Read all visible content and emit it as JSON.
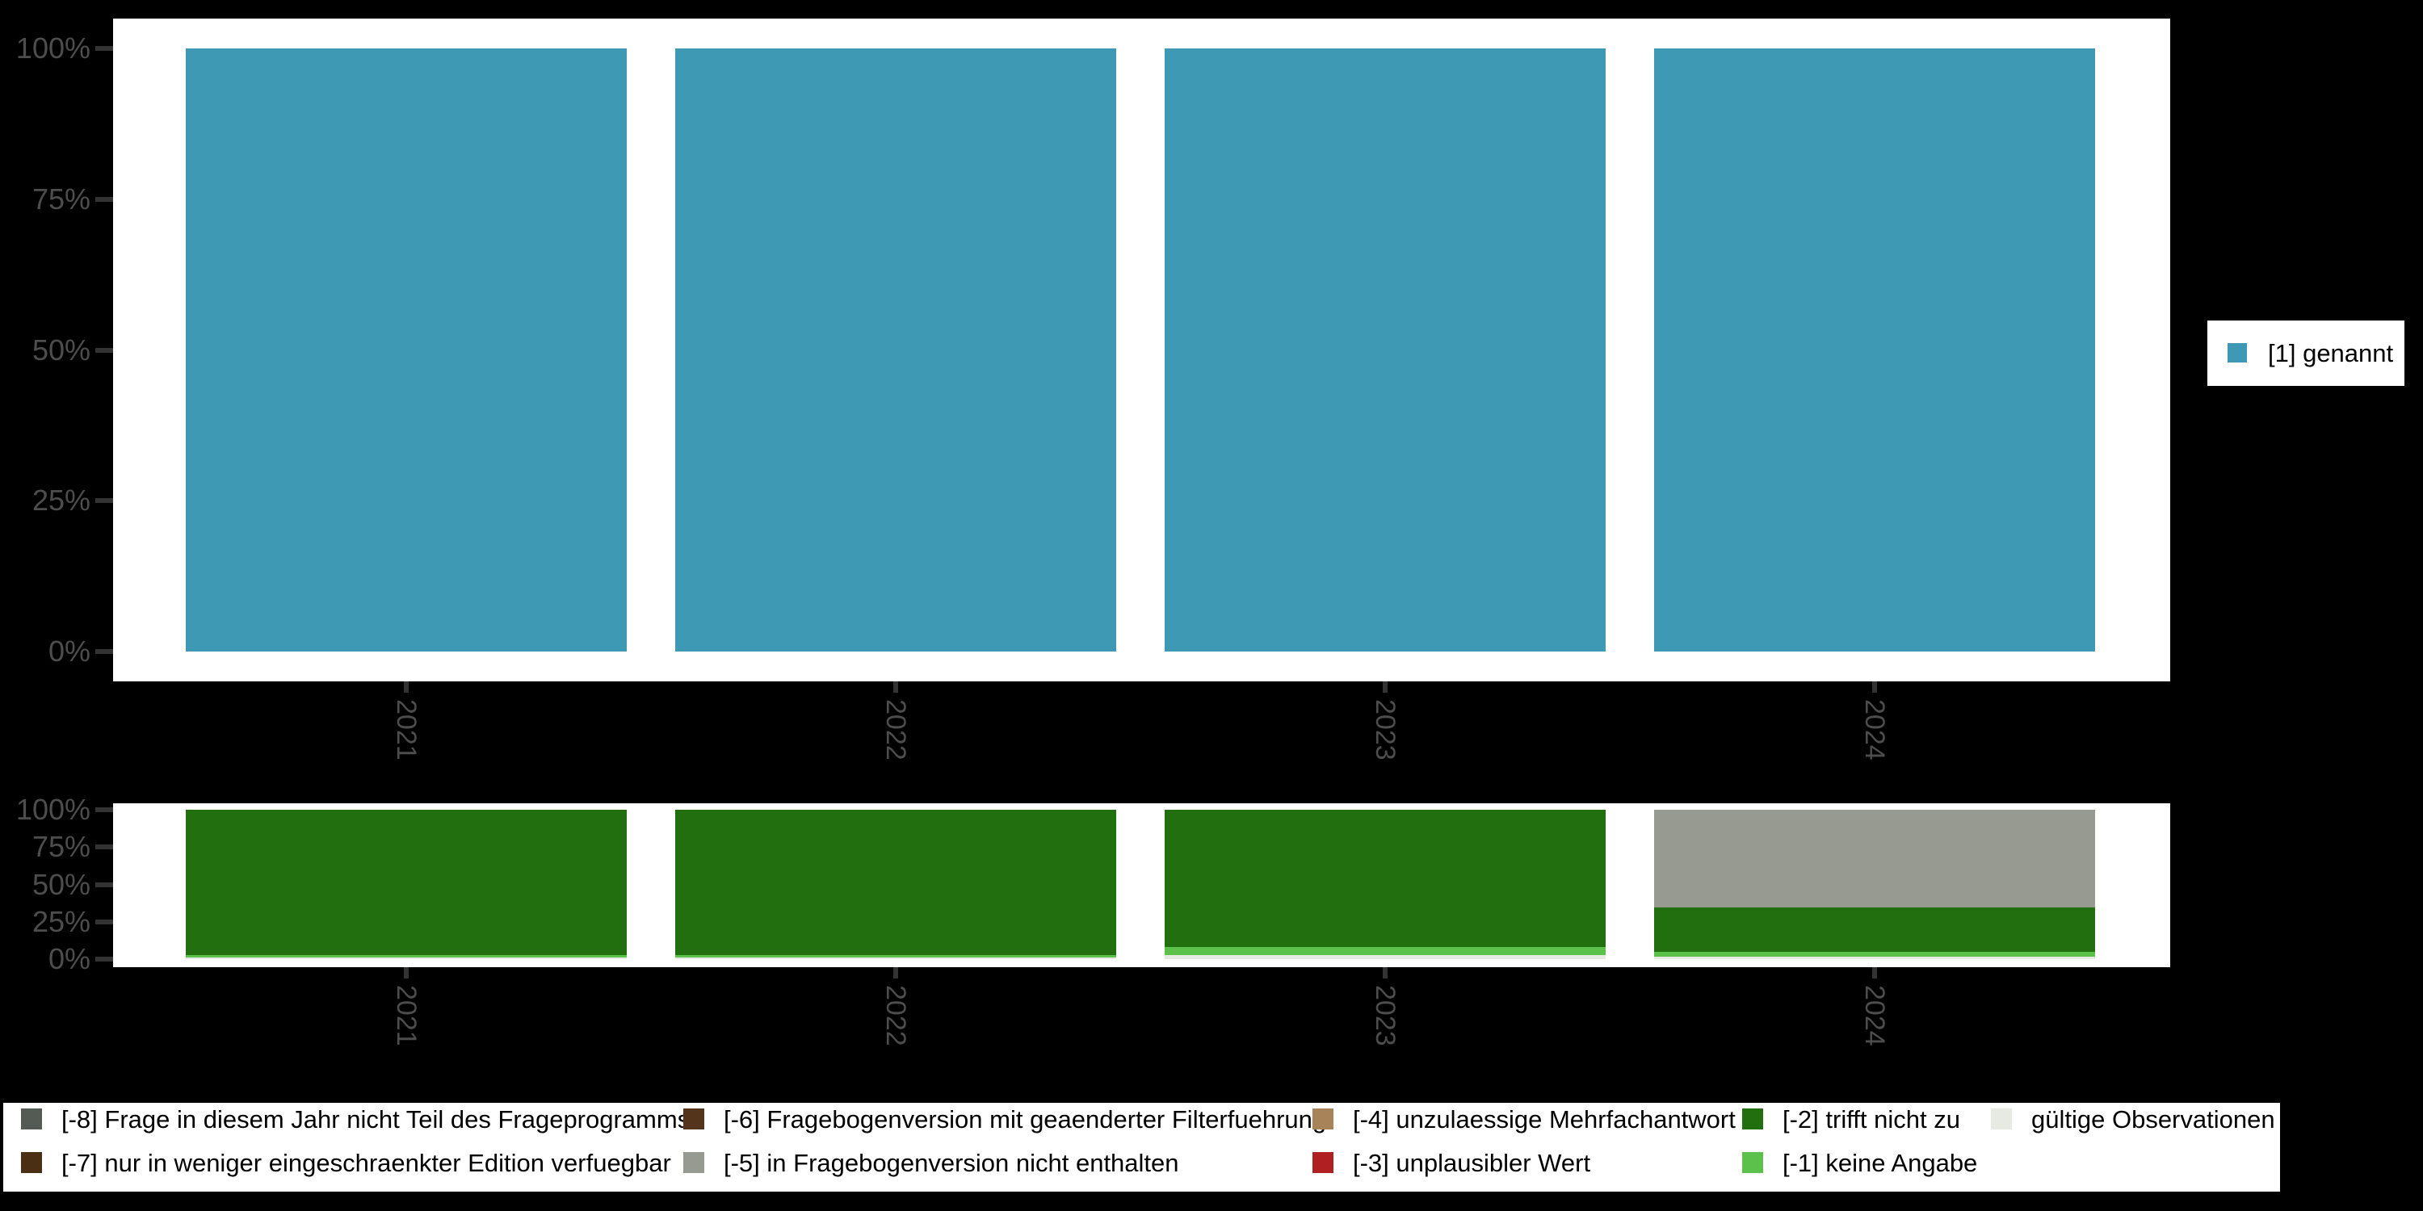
{
  "chart_data": [
    {
      "id": "top",
      "type": "bar",
      "title": "",
      "categories": [
        "2021",
        "2022",
        "2023",
        "2024"
      ],
      "series": [
        {
          "name": "[1] genannt",
          "color": "#3D99B4",
          "values": [
            100,
            100,
            100,
            100
          ]
        }
      ],
      "y_ticks": [
        {
          "label": "100%",
          "value": 100
        },
        {
          "label": "75%",
          "value": 75
        },
        {
          "label": "50%",
          "value": 50
        },
        {
          "label": "25%",
          "value": 25
        },
        {
          "label": "0%",
          "value": 0
        }
      ],
      "ylim": [
        0,
        100
      ],
      "grid": false,
      "legend_position": "right"
    },
    {
      "id": "bottom",
      "type": "stacked-bar",
      "title": "",
      "categories": [
        "2021",
        "2022",
        "2023",
        "2024"
      ],
      "stack_order": "bottom-to-top",
      "series": [
        {
          "name": "gültige Observationen",
          "color": "#E6EAE2",
          "values": [
            1.0,
            1.0,
            2.5,
            1.5
          ]
        },
        {
          "name": "[-1] keine Angabe",
          "color": "#5CC14A",
          "values": [
            1.5,
            1.5,
            5.5,
            3.5
          ]
        },
        {
          "name": "[-2] trifft nicht zu",
          "color": "#226F10",
          "values": [
            97.5,
            97.5,
            92.0,
            29.5
          ]
        },
        {
          "name": "[-5] in Fragebogenversion nicht enthalten",
          "color": "#969A91",
          "values": [
            0,
            0,
            0,
            65.5
          ]
        }
      ],
      "y_ticks": [
        {
          "label": "100%",
          "value": 100
        },
        {
          "label": "75%",
          "value": 75
        },
        {
          "label": "50%",
          "value": 50
        },
        {
          "label": "25%",
          "value": 25
        },
        {
          "label": "0%",
          "value": 0
        }
      ],
      "ylim": [
        0,
        100
      ],
      "grid": false,
      "legend_position": "bottom"
    }
  ],
  "right_legend": {
    "items": [
      {
        "label": "[1] genannt",
        "color": "#3D99B4"
      }
    ]
  },
  "bottom_legend": {
    "rows": [
      [
        {
          "label": "[-8] Frage in diesem Jahr nicht Teil des Frageprogramms",
          "color": "#545B54"
        },
        {
          "label": "[-6] Fragebogenversion mit geaenderter Filterfuehrung",
          "color": "#54341A"
        },
        {
          "label": "[-4] unzulaessige Mehrfachantwort",
          "color": "#A8835A"
        },
        {
          "label": "[-2] trifft nicht zu",
          "color": "#226F10"
        },
        {
          "label": "gültige Observationen",
          "color": "#E6EAE2"
        }
      ],
      [
        {
          "label": "[-7] nur in weniger eingeschraenkter Edition verfuegbar",
          "color": "#4A2F15"
        },
        {
          "label": "[-5] in Fragebogenversion nicht enthalten",
          "color": "#969A91"
        },
        {
          "label": "[-3] unplausibler Wert",
          "color": "#B02023"
        },
        {
          "label": "[-1] keine Angabe",
          "color": "#5CC14A"
        }
      ]
    ]
  },
  "colors": {
    "background": "#000000",
    "panel": "#FFFFFF",
    "axis_text": "#4D4D4D",
    "tick": "#333333"
  }
}
